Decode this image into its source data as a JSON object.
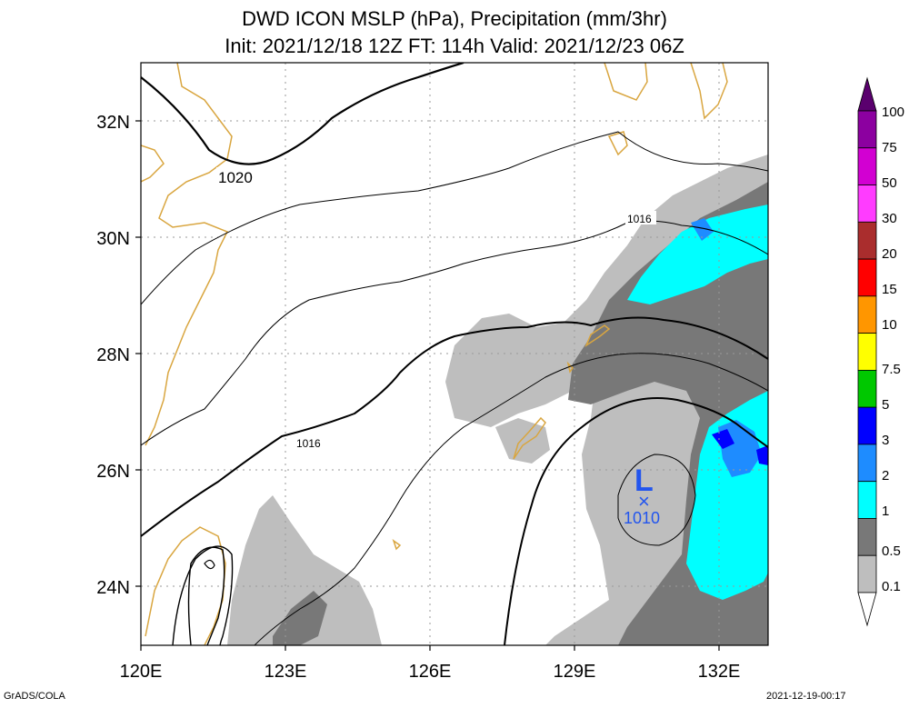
{
  "title": {
    "line1": "DWD ICON MSLP (hPa), Precipitation (mm/3hr)",
    "line2": "Init: 2021/12/18 12Z  FT: 114h  Valid: 2021/12/23 06Z"
  },
  "map": {
    "lon_range": [
      120,
      133
    ],
    "lat_range": [
      23,
      33
    ],
    "lon_ticks": [
      "120E",
      "123E",
      "126E",
      "129E",
      "132E"
    ],
    "lat_ticks": [
      "24N",
      "26N",
      "28N",
      "30N",
      "32N"
    ],
    "contour_labels": [
      "1020",
      "1016",
      "1016"
    ],
    "low_center": {
      "symbol": "L",
      "marker": "×",
      "pressure": "1010"
    },
    "colors": {
      "coastline": "#d9a640",
      "isobar": "#000000",
      "grid": "#9a9a9a",
      "low_center": "#2255ee"
    }
  },
  "colorbar": {
    "levels": [
      "100",
      "75",
      "50",
      "30",
      "20",
      "15",
      "10",
      "7.5",
      "5",
      "3",
      "2",
      "1",
      "0.5",
      "0.1"
    ],
    "colors": [
      "#5a006e",
      "#8c00a0",
      "#d200d2",
      "#ff3cff",
      "#aa2d2d",
      "#ff0000",
      "#ff9600",
      "#ffff00",
      "#00c800",
      "#0000ff",
      "#1e8cff",
      "#00ffff",
      "#787878",
      "#bebebe",
      "#ffffff"
    ]
  },
  "footer": {
    "left": "GrADS/COLA",
    "right": "2021-12-19-00:17"
  }
}
